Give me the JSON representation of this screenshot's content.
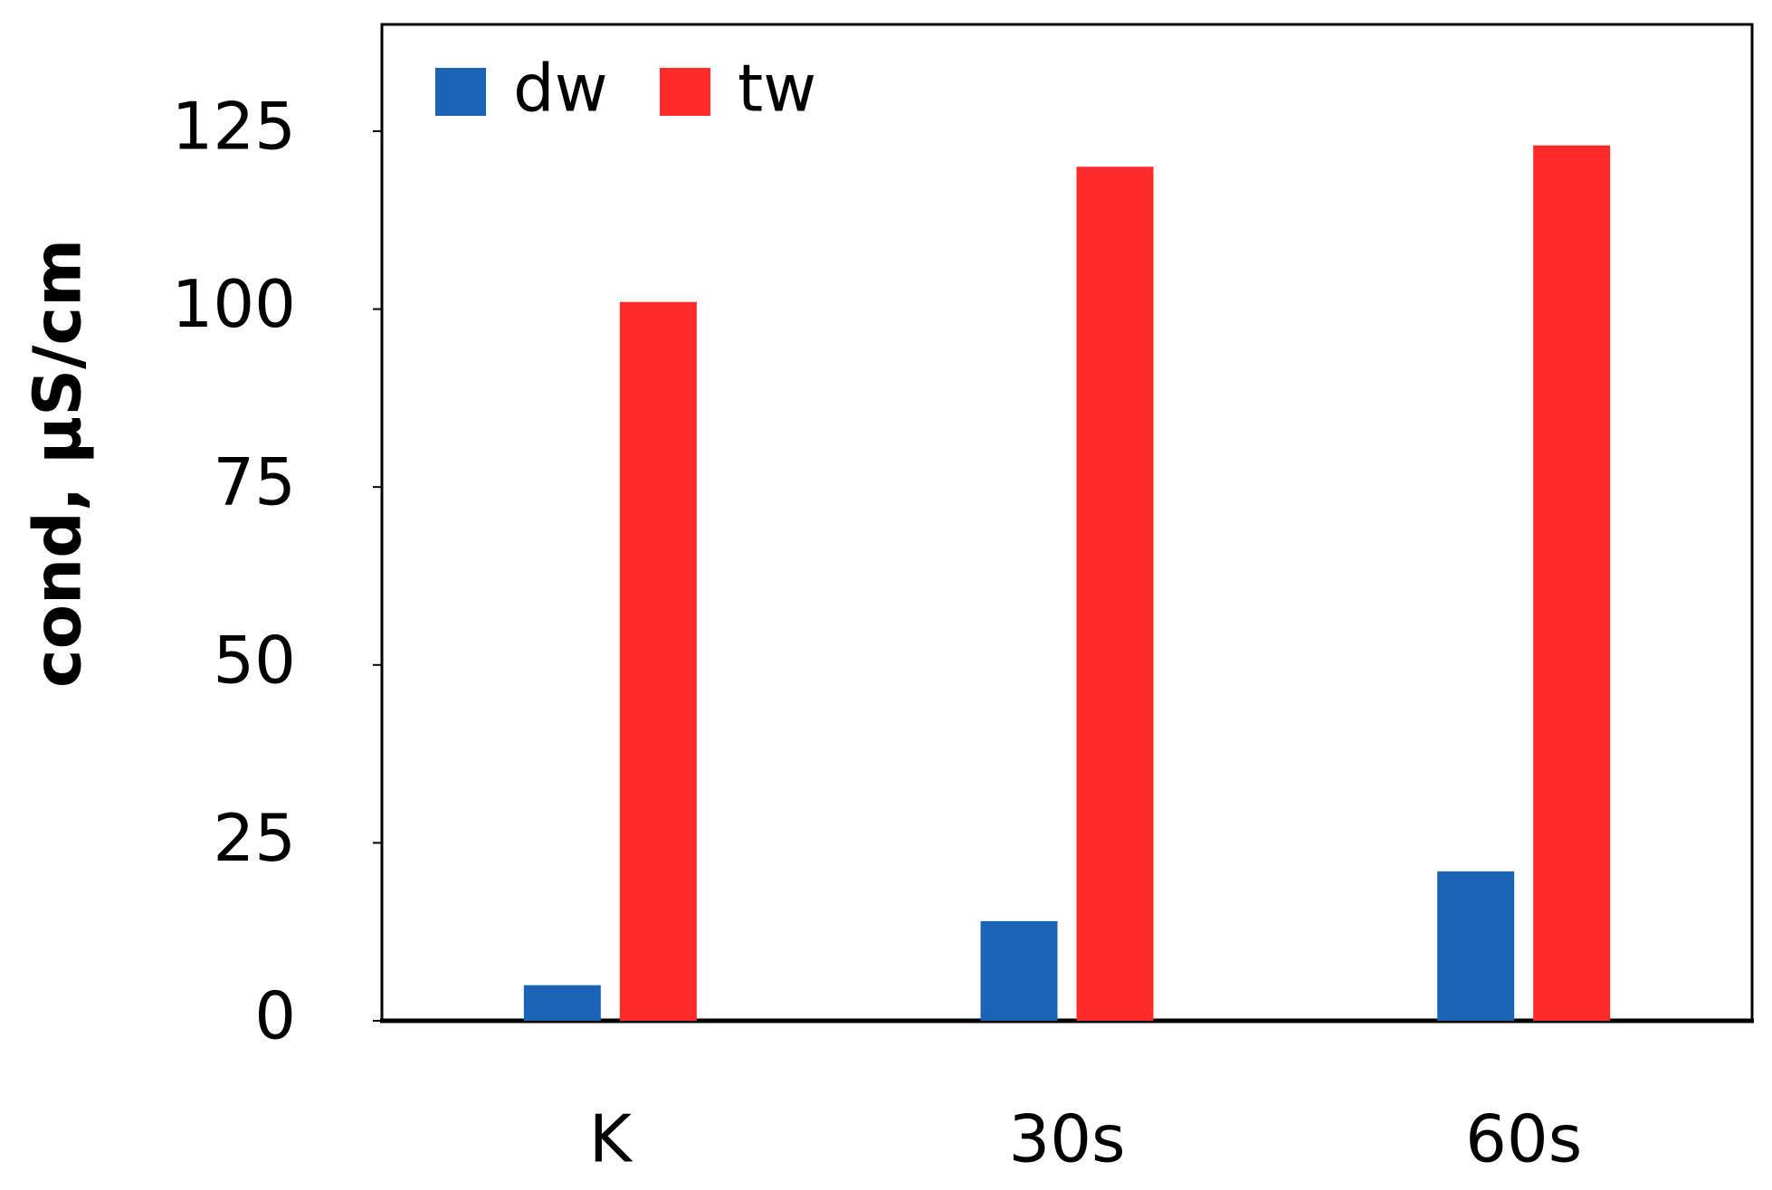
{
  "chart_data": {
    "type": "bar",
    "y_label": "cond, µS/cm",
    "categories": [
      "K",
      "30s",
      "60s"
    ],
    "series": [
      {
        "name": "dw",
        "color": "#1a63b5",
        "values": [
          5,
          14,
          21
        ]
      },
      {
        "name": "tw",
        "color": "#ff2a2a",
        "values": [
          101,
          120,
          123
        ]
      }
    ],
    "ylim": [
      0,
      140
    ],
    "yticks": [
      0,
      25,
      50,
      75,
      100,
      125
    ],
    "grid": false,
    "legend": "upper left"
  }
}
